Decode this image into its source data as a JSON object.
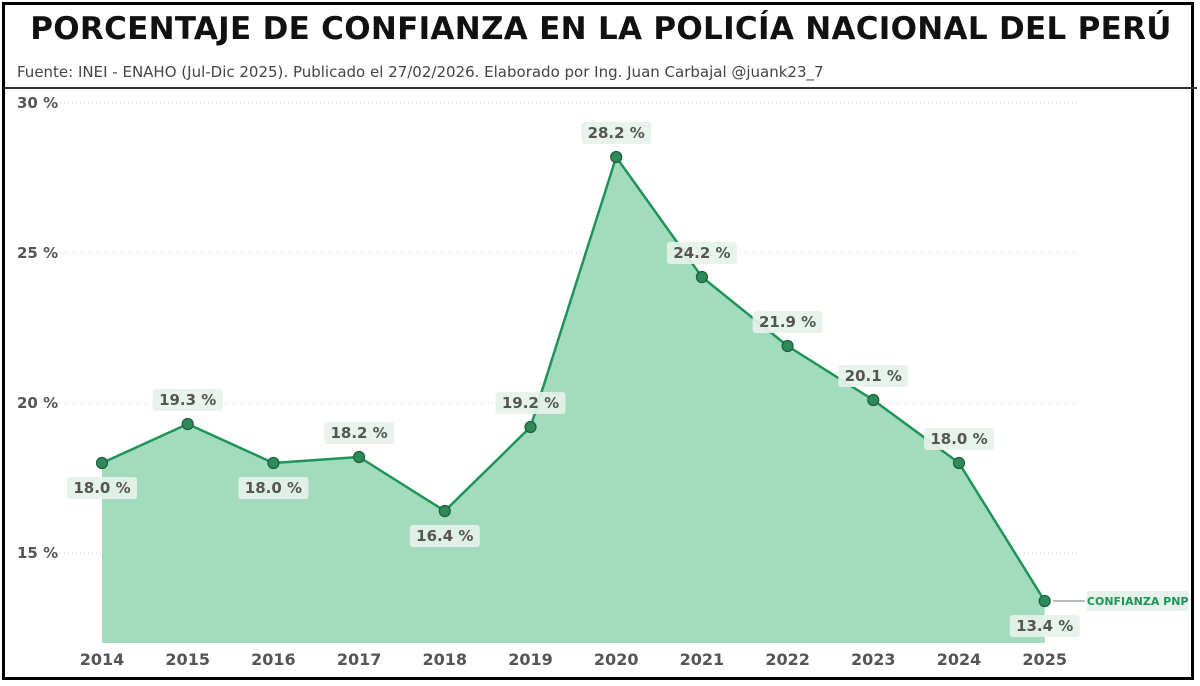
{
  "title": "PORCENTAJE DE CONFIANZA EN LA POLICÍA NACIONAL DEL PERÚ",
  "subtitle": "Fuente: INEI - ENAHO (Jul-Dic 2025). Publicado el 27/02/2026. Elaborado por Ing. Juan Carbajal @juank23_7",
  "colors": {
    "line": "#1e9457",
    "area": "#a3dbbe",
    "marker": "#2f8a5a",
    "label_bg": "#e6f2ea"
  },
  "chart_data": {
    "type": "area",
    "title": "PORCENTAJE DE CONFIANZA EN LA POLICÍA NACIONAL DEL PERÚ",
    "categories": [
      "2014",
      "2015",
      "2016",
      "2017",
      "2018",
      "2019",
      "2020",
      "2021",
      "2022",
      "2023",
      "2024",
      "2025"
    ],
    "series": [
      {
        "name": "CONFIANZA PNP",
        "values": [
          18.0,
          19.3,
          18.0,
          18.2,
          16.4,
          19.2,
          28.2,
          24.2,
          21.9,
          20.1,
          18.0,
          13.4
        ],
        "labels": [
          "18.0 %",
          "19.3 %",
          "18.0 %",
          "18.2 %",
          "16.4 %",
          "19.2 %",
          "28.2 %",
          "24.2 %",
          "21.9 %",
          "20.1 %",
          "18.0 %",
          "13.4 %"
        ],
        "label_position": [
          "below",
          "above",
          "below",
          "above",
          "below",
          "above",
          "above",
          "above",
          "above",
          "above",
          "above",
          "below"
        ]
      }
    ],
    "yticks": [
      15,
      20,
      25,
      30
    ],
    "ytick_labels": [
      "15 %",
      "20 %",
      "25 %",
      "30 %"
    ],
    "ylim": [
      12,
      30
    ],
    "xlabel": "",
    "ylabel": "",
    "grid": true,
    "legend": "right-end label"
  }
}
